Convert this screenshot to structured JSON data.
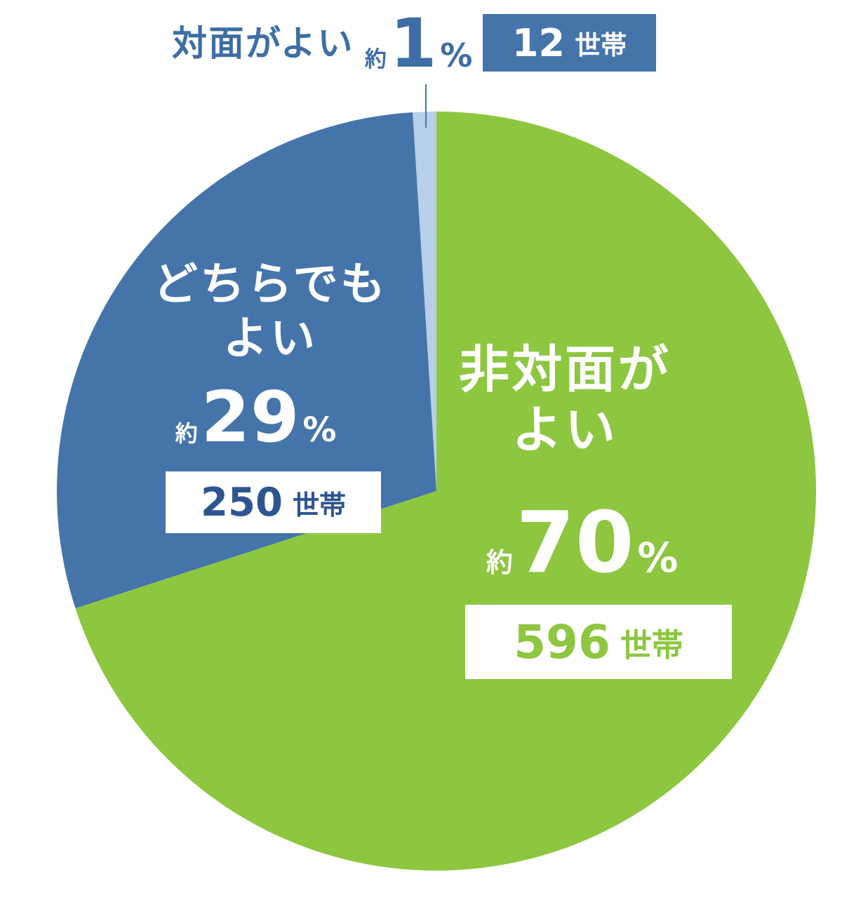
{
  "chart_data": {
    "type": "pie",
    "categories": [
      "非対面がよい",
      "どちらでもよい",
      "対面がよい"
    ],
    "values": [
      70,
      29,
      1
    ],
    "value_prefix": "約",
    "value_suffix": "%",
    "counts": [
      596,
      250,
      12
    ],
    "count_suffix": "世帯",
    "colors": [
      "#8dc63f",
      "#4574aa",
      "#b8cfe9"
    ]
  }
}
